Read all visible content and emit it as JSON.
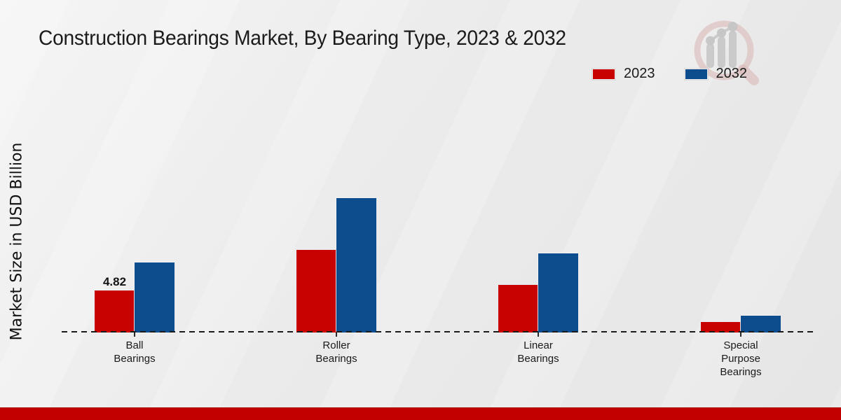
{
  "header": {
    "title": "Construction Bearings Market, By Bearing Type, 2023 & 2032"
  },
  "legend": {
    "items": [
      {
        "label": "2023",
        "color": "#c80101"
      },
      {
        "label": "2032",
        "color": "#0e4d8d"
      }
    ]
  },
  "watermark": {
    "icon": "magnifier-growth-chart-logo",
    "ring_color": "#dcb9b9",
    "bars_color": "#c6c6c6"
  },
  "footer": {
    "bar_color": "#c20000"
  },
  "chart_data": {
    "type": "bar",
    "title": "Construction Bearings Market, By Bearing Type, 2023 & 2032",
    "xlabel": "",
    "ylabel": "Market Size in USD Billion",
    "categories": [
      "Ball\nBearings",
      "Roller\nBearings",
      "Linear\nBearings",
      "Special\nPurpose\nBearings"
    ],
    "series": [
      {
        "name": "2023",
        "color": "#c80101",
        "values": [
          4.82,
          9.5,
          5.5,
          1.2
        ]
      },
      {
        "name": "2032",
        "color": "#0e4d8d",
        "values": [
          8.0,
          15.4,
          9.1,
          1.9
        ]
      }
    ],
    "annotations": [
      {
        "series": "2023",
        "category_index": 0,
        "text": "4.82"
      }
    ],
    "legend_position": "top-right",
    "grid": false,
    "y_axis_ticks_visible": false,
    "baseline_style": "dashed"
  }
}
